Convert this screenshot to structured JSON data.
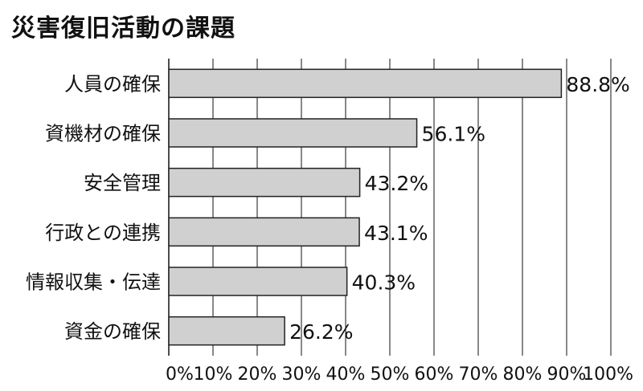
{
  "chart_data": {
    "type": "bar",
    "orientation": "horizontal",
    "title": "災害復旧活動の課題",
    "categories": [
      "人員の確保",
      "資機材の確保",
      "安全管理",
      "行政との連携",
      "情報収集・伝達",
      "資金の確保"
    ],
    "values": [
      88.8,
      56.1,
      43.2,
      43.1,
      40.3,
      26.2
    ],
    "value_labels": [
      "88.8%",
      "56.1%",
      "43.2%",
      "43.1%",
      "40.3%",
      "26.2%"
    ],
    "xlim": [
      0,
      100
    ],
    "x_ticks": [
      "0%",
      "10%",
      "20%",
      "30%",
      "40%",
      "50%",
      "60%",
      "70%",
      "80%",
      "90%",
      "100%"
    ],
    "grid": true,
    "bar_color": "#d0d0d0",
    "bar_edge_color": "#222222"
  }
}
